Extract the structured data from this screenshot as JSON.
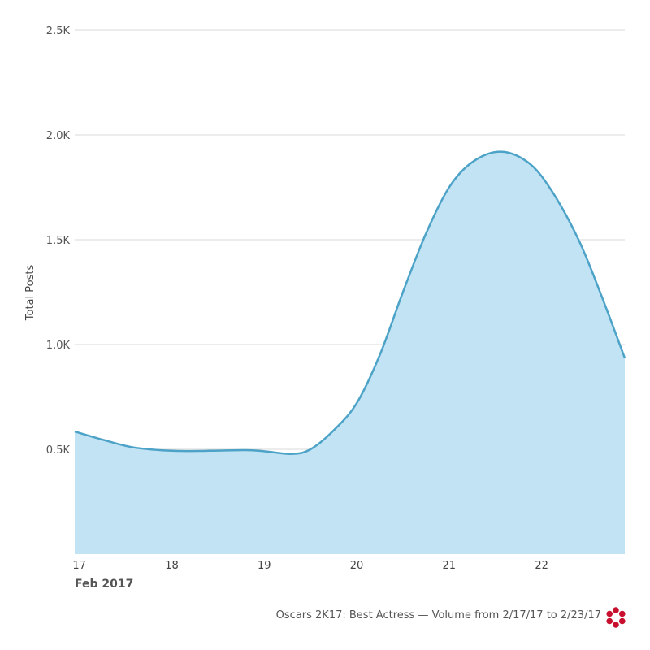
{
  "chart_data": {
    "type": "area",
    "title": "",
    "ylabel": "Total Posts",
    "xlabel": "Feb 2017",
    "ylim": [
      0,
      2500
    ],
    "y_ticks": [
      {
        "value": 500,
        "label": "0.5K"
      },
      {
        "value": 1000,
        "label": "1.0K"
      },
      {
        "value": 1500,
        "label": "1.5K"
      },
      {
        "value": 2000,
        "label": "2.0K"
      },
      {
        "value": 2500,
        "label": "2.5K"
      }
    ],
    "x_ticks": [
      {
        "value": 17,
        "label": "17"
      },
      {
        "value": 18,
        "label": "18"
      },
      {
        "value": 19,
        "label": "19"
      },
      {
        "value": 20,
        "label": "20"
      },
      {
        "value": 21,
        "label": "21"
      },
      {
        "value": 22,
        "label": "22"
      }
    ],
    "xlim": [
      16.95,
      22.9
    ],
    "grid": true,
    "series": [
      {
        "color": "#4da3c7",
        "fill": "#c2e3f3",
        "points": [
          [
            16.95,
            585
          ],
          [
            17.3,
            540
          ],
          [
            17.6,
            508
          ],
          [
            18.0,
            493
          ],
          [
            18.4,
            493
          ],
          [
            18.8,
            496
          ],
          [
            19.0,
            491
          ],
          [
            19.3,
            478
          ],
          [
            19.5,
            500
          ],
          [
            19.75,
            590
          ],
          [
            20.0,
            720
          ],
          [
            20.25,
            950
          ],
          [
            20.5,
            1250
          ],
          [
            20.75,
            1530
          ],
          [
            21.0,
            1750
          ],
          [
            21.25,
            1870
          ],
          [
            21.55,
            1920
          ],
          [
            21.85,
            1870
          ],
          [
            22.1,
            1740
          ],
          [
            22.4,
            1500
          ],
          [
            22.65,
            1230
          ],
          [
            22.9,
            935
          ]
        ]
      }
    ]
  },
  "footer": {
    "caption": "Oscars 2K17: Best Actress — Volume from 2/17/17 to 2/23/17",
    "logo_icon": "flower-logo-icon",
    "logo_color": "#c8102e"
  }
}
